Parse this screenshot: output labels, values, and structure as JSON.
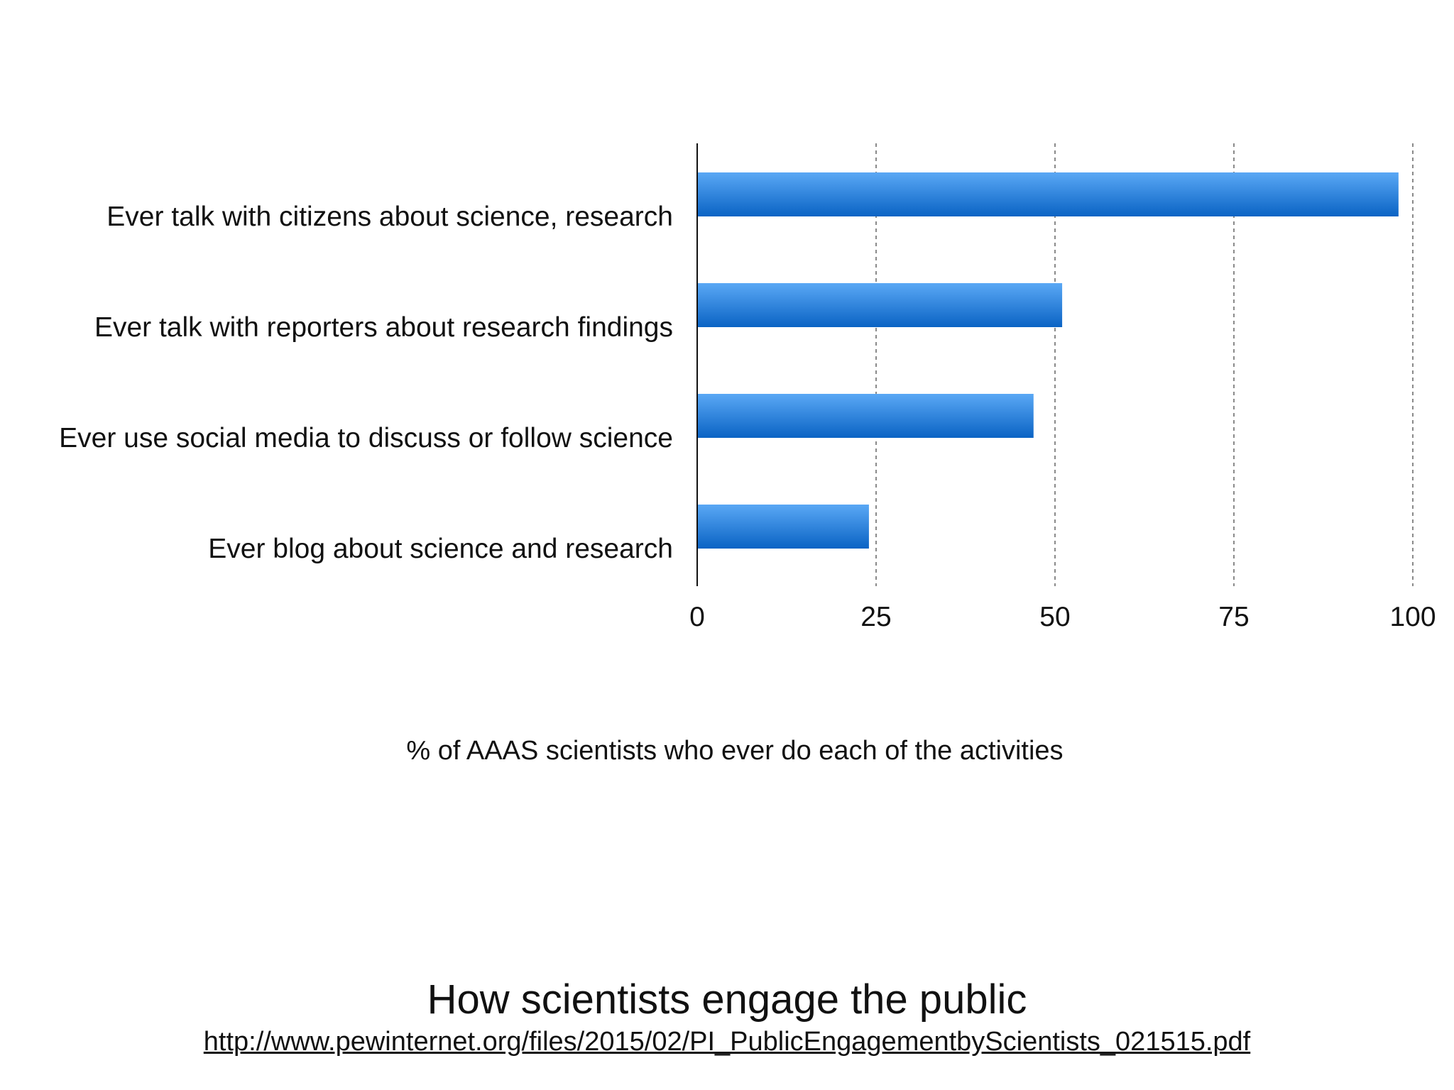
{
  "chart_data": {
    "type": "bar",
    "orientation": "horizontal",
    "categories": [
      "Ever talk with citizens about science, research",
      "Ever talk with reporters about research findings",
      "Ever use social media to discuss or follow science",
      "Ever blog about science and research"
    ],
    "values": [
      98,
      51,
      47,
      24
    ],
    "xlabel": "% of AAAS scientists who ever do each of the activities",
    "ylabel": "",
    "xlim": [
      0,
      100
    ],
    "xticks": [
      "0",
      "25",
      "50",
      "75",
      "100"
    ],
    "grid": "vertical dashed",
    "legend": "none",
    "bar_color_top": "#5aa8f5",
    "bar_color_bottom": "#0a63c4"
  },
  "slide": {
    "title": "How scientists engage the public",
    "source_url": "http://www.pewinternet.org/files/2015/02/PI_PublicEngagementbyScientists_021515.pdf"
  }
}
